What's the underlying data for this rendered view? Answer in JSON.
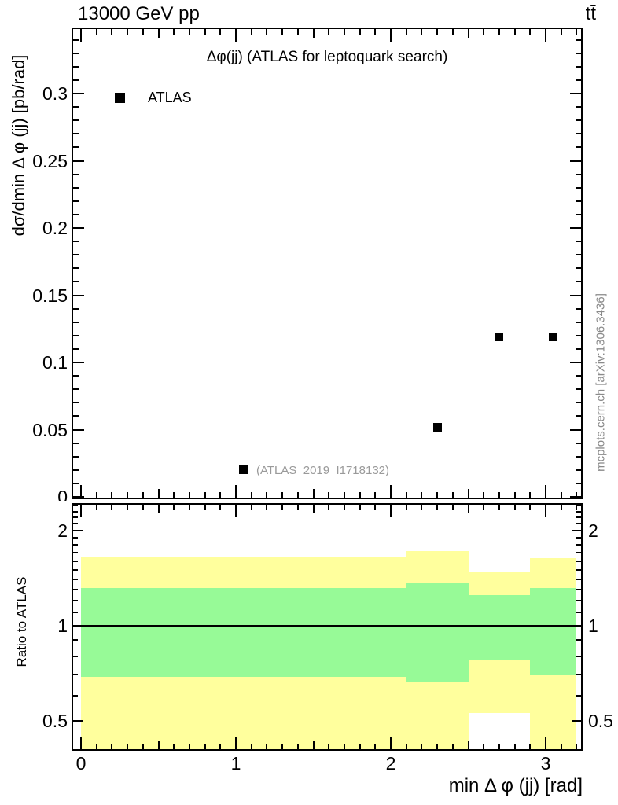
{
  "header": {
    "collision": "13000 GeV pp",
    "process": "tt̄"
  },
  "main_panel": {
    "title": "Δφ(jj) (ATLAS for leptoquark search)",
    "ylabel": "dσ/dmin Δ φ (jj) [pb/rad]",
    "legend": {
      "marker": "filled-square",
      "label": "ATLAS"
    },
    "ref_label": "(ATLAS_2019_I1718132)"
  },
  "ratio_panel": {
    "ylabel": "Ratio to ATLAS"
  },
  "x_axis": {
    "label": "min Δ φ (jj) [rad]"
  },
  "watermark": "mcplots.cern.ch [arXiv:1306.3436]",
  "colors": {
    "band_yellow": "#ffff9d",
    "band_green": "#97fa97",
    "marker": "#000000",
    "muted_text": "#9a9a9a",
    "watermark_text": "#8a8a8a"
  },
  "chart_data": {
    "type": "scatter",
    "title": "Δφ(jj) (ATLAS for leptoquark search)",
    "xlabel": "min Δ φ (jj) [rad]",
    "ylabel": "dσ/dmin Δ φ (jj) [pb/rad]",
    "xlim": [
      -0.06,
      3.24
    ],
    "xticks": [
      0,
      1,
      2,
      3
    ],
    "x_minor_step": 0.1,
    "main": {
      "ylim": [
        0,
        0.349
      ],
      "yticks_major": [
        0,
        0.05,
        0.1,
        0.15,
        0.2,
        0.25,
        0.3
      ],
      "y_minor_step": 0.01,
      "grid": false,
      "series": [
        {
          "name": "ATLAS",
          "marker": "filled-square",
          "color": "#000000",
          "points": [
            {
              "x": 1.05,
              "y": 0.02
            },
            {
              "x": 2.3,
              "y": 0.052
            },
            {
              "x": 2.7,
              "y": 0.119
            },
            {
              "x": 3.05,
              "y": 0.119
            }
          ]
        }
      ]
    },
    "ratio": {
      "ylabel": "Ratio to ATLAS",
      "yscale": "log",
      "ylim": [
        0.402,
        2.44
      ],
      "yticks_major": [
        0.5,
        1,
        2
      ],
      "yticks_minor": [
        0.5,
        0.6,
        0.7,
        0.8,
        0.9,
        1.1,
        1.2,
        1.3,
        1.4,
        1.5,
        1.6,
        1.7,
        1.8,
        1.9,
        2.1,
        2.2,
        2.3,
        2.4
      ],
      "baseline": 1,
      "bins": [
        {
          "x_range": [
            0.0,
            2.1
          ],
          "yellow": [
            0.4,
            1.65
          ],
          "green": [
            0.69,
            1.32
          ]
        },
        {
          "x_range": [
            2.1,
            2.5
          ],
          "yellow": [
            0.4,
            1.72
          ],
          "green": [
            0.66,
            1.37
          ]
        },
        {
          "x_range": [
            2.5,
            2.9
          ],
          "yellow": [
            0.53,
            1.48
          ],
          "green": [
            0.78,
            1.25
          ]
        },
        {
          "x_range": [
            2.9,
            3.2
          ],
          "yellow": [
            0.4,
            1.64
          ],
          "green": [
            0.7,
            1.32
          ]
        }
      ]
    }
  }
}
